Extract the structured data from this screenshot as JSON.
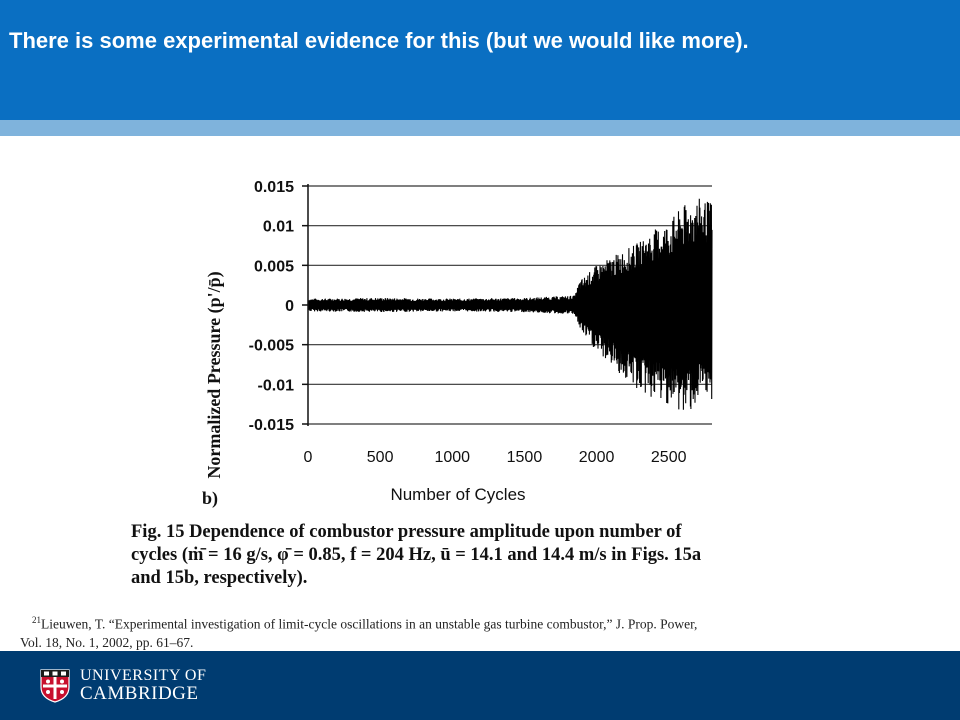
{
  "slide": {
    "title": "There is some experimental evidence for this (but we would like more)."
  },
  "chart_data": {
    "type": "line",
    "panel_label": "b)",
    "xlabel": "Number of Cycles",
    "ylabel": "Normalized Pressure (p'/p̄)",
    "xlim": [
      0,
      2800
    ],
    "ylim": [
      -0.015,
      0.015
    ],
    "x_ticks": [
      "0",
      "500",
      "1000",
      "1500",
      "2000",
      "2500"
    ],
    "x_tick_values": [
      0,
      500,
      1000,
      1500,
      2000,
      2500
    ],
    "y_ticks": [
      "0.015",
      "0.01",
      "0.005",
      "0",
      "-0.005",
      "-0.01",
      "-0.015"
    ],
    "y_tick_values": [
      0.015,
      0.01,
      0.005,
      0,
      -0.005,
      -0.01,
      -0.015
    ],
    "grid": "horizontal",
    "envelope": {
      "x": [
        0,
        500,
        1000,
        1500,
        1850,
        1880,
        2000,
        2100,
        2200,
        2300,
        2400,
        2500,
        2600,
        2700,
        2800
      ],
      "upper": [
        0.0008,
        0.0009,
        0.0008,
        0.0009,
        0.0012,
        0.003,
        0.005,
        0.006,
        0.007,
        0.008,
        0.0095,
        0.0105,
        0.0125,
        0.0135,
        0.013
      ],
      "lower": [
        -0.0008,
        -0.0009,
        -0.0008,
        -0.0009,
        -0.0012,
        -0.003,
        -0.006,
        -0.0075,
        -0.0095,
        -0.011,
        -0.012,
        -0.0125,
        -0.014,
        -0.0125,
        -0.012
      ]
    }
  },
  "caption": {
    "line1": "Fig. 15   Dependence of combustor pressure amplitude upon number of",
    "line2": "cycles (ṁ̄ = 16 g/s, φ̄ = 0.85, f = 204 Hz, ū = 14.1 and 14.4 m/s in Figs. 15a",
    "line3": "and 15b, respectively)."
  },
  "footnote": {
    "number": "21",
    "line1": "Lieuwen, T. “Experimental investigation of limit-cycle oscillations in an unstable gas turbine combustor,” J. Prop. Power,",
    "line2": "Vol. 18, No. 1, 2002, pp. 61–67."
  },
  "footer": {
    "line1": "UNIVERSITY OF",
    "line2": "CAMBRIDGE"
  }
}
